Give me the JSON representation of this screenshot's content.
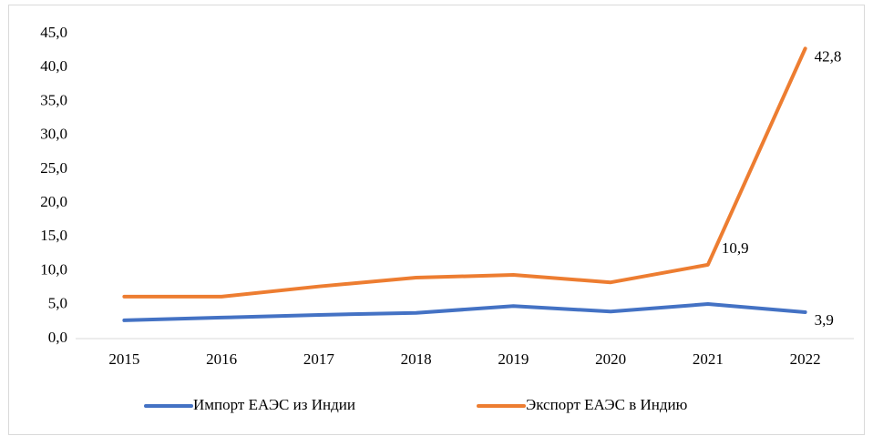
{
  "chart_data": {
    "type": "line",
    "categories": [
      "2015",
      "2016",
      "2017",
      "2018",
      "2019",
      "2020",
      "2021",
      "2022"
    ],
    "series": [
      {
        "name": "Импорт ЕАЭС из Индии",
        "color": "#4472c4",
        "values": [
          2.7,
          3.1,
          3.5,
          3.8,
          4.8,
          4.0,
          5.1,
          3.9
        ],
        "value_labels": [
          null,
          null,
          null,
          null,
          null,
          null,
          null,
          "3,9"
        ]
      },
      {
        "name": "Экспорт ЕАЭС в Индию",
        "color": "#ed7d31",
        "values": [
          6.2,
          6.2,
          7.7,
          9.0,
          9.4,
          8.3,
          10.9,
          42.8
        ],
        "value_labels": [
          null,
          null,
          null,
          null,
          null,
          null,
          "10,9",
          "42,8"
        ]
      }
    ],
    "ylim": [
      0,
      45
    ],
    "yticks": [
      {
        "value": 0,
        "label": "0,0"
      },
      {
        "value": 5,
        "label": "5,0"
      },
      {
        "value": 10,
        "label": "10,0"
      },
      {
        "value": 15,
        "label": "15,0"
      },
      {
        "value": 20,
        "label": "20,0"
      },
      {
        "value": 25,
        "label": "25,0"
      },
      {
        "value": 30,
        "label": "30,0"
      },
      {
        "value": 35,
        "label": "35,0"
      },
      {
        "value": 40,
        "label": "40,0"
      },
      {
        "value": 45,
        "label": "45,0"
      }
    ],
    "legend": "bottom",
    "grid": false
  }
}
